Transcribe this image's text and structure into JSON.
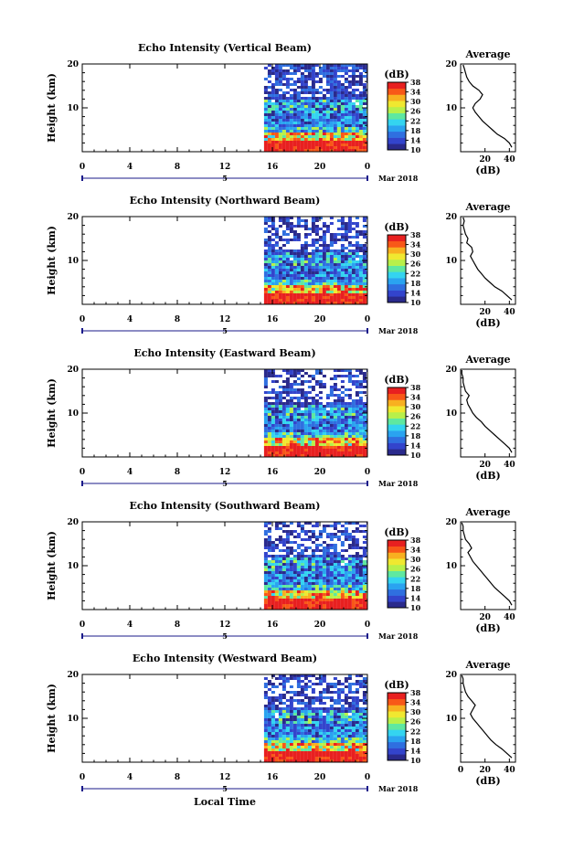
{
  "colors": {
    "scale": [
      "#2a2a8c",
      "#3344cc",
      "#2f6fe0",
      "#2aa3f0",
      "#34d4f0",
      "#5fe8a0",
      "#b8f04a",
      "#f0e830",
      "#f8b020",
      "#f85818",
      "#e82020"
    ],
    "axis": "#000000",
    "timeline": "#1a1a8a"
  },
  "chart_data": [
    {
      "type": "heatmap",
      "title": "Echo Intensity (Vertical Beam)",
      "ylabel": "Height (km)",
      "xticks": [
        "0",
        "4",
        "8",
        "12",
        "16",
        "20",
        "0"
      ],
      "yticks": [
        "10",
        "20"
      ],
      "xlim": [
        0,
        24
      ],
      "ylim": [
        0,
        20
      ],
      "data_start_hour": 15.3,
      "colorbar": {
        "label": "(dB)",
        "ticks": [
          "10",
          "14",
          "18",
          "22",
          "26",
          "30",
          "34",
          "38"
        ],
        "range": [
          10,
          38
        ]
      },
      "date_marker": "5",
      "month_year": "Mar 2018",
      "profile": {
        "title": "Average",
        "xlabel": "(dB)",
        "xticks": [
          "20",
          "40"
        ],
        "xlim": [
          0,
          45
        ],
        "yticks": [
          "10",
          "20"
        ],
        "height_km": [
          1.0,
          2.0,
          3.0,
          4.0,
          5.0,
          6.0,
          7.0,
          8.0,
          9.0,
          10.0,
          11.0,
          12.0,
          13.0,
          14.0,
          15.0,
          16.0,
          17.0,
          18.0,
          19.0,
          19.8
        ],
        "db": [
          42,
          40,
          36,
          30,
          26,
          22,
          18,
          15,
          12,
          10,
          12,
          16,
          18,
          15,
          10,
          7,
          5,
          4,
          3,
          2
        ]
      }
    },
    {
      "type": "heatmap",
      "title": "Echo Intensity (Northward Beam)",
      "ylabel": "Height (km)",
      "xticks": [
        "0",
        "4",
        "8",
        "12",
        "16",
        "20",
        "0"
      ],
      "yticks": [
        "10",
        "20"
      ],
      "xlim": [
        0,
        24
      ],
      "ylim": [
        0,
        20
      ],
      "data_start_hour": 15.3,
      "colorbar": {
        "label": "(dB)",
        "ticks": [
          "10",
          "14",
          "18",
          "22",
          "26",
          "30",
          "34",
          "38"
        ],
        "range": [
          10,
          38
        ]
      },
      "date_marker": "5",
      "month_year": "Mar 2018",
      "profile": {
        "title": "Average",
        "xlabel": "(dB)",
        "xticks": [
          "20",
          "40"
        ],
        "xlim": [
          0,
          45
        ],
        "yticks": [
          "10",
          "20"
        ],
        "height_km": [
          1.0,
          2.0,
          3.0,
          4.0,
          5.0,
          6.0,
          7.0,
          8.0,
          9.0,
          10.0,
          11.0,
          12.0,
          13.0,
          14.0,
          15.0,
          16.0,
          17.0,
          18.0,
          19.0,
          19.8
        ],
        "db": [
          42,
          38,
          34,
          28,
          24,
          20,
          17,
          14,
          12,
          10,
          8,
          10,
          9,
          5,
          6,
          4,
          3,
          2,
          3,
          2
        ]
      }
    },
    {
      "type": "heatmap",
      "title": "Echo Intensity (Eastward Beam)",
      "ylabel": "Height (km)",
      "xticks": [
        "0",
        "4",
        "8",
        "12",
        "16",
        "20",
        "0"
      ],
      "yticks": [
        "10",
        "20"
      ],
      "xlim": [
        0,
        24
      ],
      "ylim": [
        0,
        20
      ],
      "data_start_hour": 15.3,
      "colorbar": {
        "label": "(dB)",
        "ticks": [
          "10",
          "14",
          "18",
          "22",
          "26",
          "30",
          "34",
          "38"
        ],
        "range": [
          10,
          38
        ]
      },
      "date_marker": "5",
      "month_year": "Mar 2018",
      "profile": {
        "title": "Average",
        "xlabel": "(dB)",
        "xticks": [
          "20",
          "40"
        ],
        "xlim": [
          0,
          45
        ],
        "yticks": [
          "10",
          "20"
        ],
        "height_km": [
          1.0,
          2.0,
          3.0,
          4.0,
          5.0,
          6.0,
          7.0,
          8.0,
          9.0,
          10.0,
          11.0,
          12.0,
          13.0,
          14.0,
          15.0,
          16.0,
          17.0,
          18.0,
          19.0,
          19.8
        ],
        "db": [
          42,
          40,
          36,
          32,
          28,
          24,
          20,
          17,
          13,
          10,
          8,
          6,
          5,
          7,
          4,
          3,
          2,
          2,
          1,
          1
        ]
      }
    },
    {
      "type": "heatmap",
      "title": "Echo Intensity (Southward Beam)",
      "ylabel": "Height (km)",
      "xticks": [
        "0",
        "4",
        "8",
        "12",
        "16",
        "20",
        "0"
      ],
      "yticks": [
        "10",
        "20"
      ],
      "xlim": [
        0,
        24
      ],
      "ylim": [
        0,
        20
      ],
      "data_start_hour": 15.3,
      "colorbar": {
        "label": "(dB)",
        "ticks": [
          "10",
          "14",
          "18",
          "22",
          "26",
          "30",
          "34",
          "38"
        ],
        "range": [
          10,
          38
        ]
      },
      "date_marker": "5",
      "month_year": "Mar 2018",
      "profile": {
        "title": "Average",
        "xlabel": "(dB)",
        "xticks": [
          "20",
          "40"
        ],
        "xlim": [
          0,
          45
        ],
        "yticks": [
          "10",
          "20"
        ],
        "height_km": [
          1.0,
          2.0,
          3.0,
          4.0,
          5.0,
          6.0,
          7.0,
          8.0,
          9.0,
          10.0,
          11.0,
          12.0,
          13.0,
          14.0,
          15.0,
          16.0,
          17.0,
          18.0,
          19.0,
          19.8
        ],
        "db": [
          42,
          40,
          36,
          32,
          28,
          25,
          22,
          19,
          16,
          13,
          10,
          8,
          6,
          9,
          7,
          4,
          3,
          2,
          2,
          1
        ]
      }
    },
    {
      "type": "heatmap",
      "title": "Echo Intensity (Westward Beam)",
      "ylabel": "Height (km)",
      "xticks": [
        "0",
        "4",
        "8",
        "12",
        "16",
        "20",
        "0"
      ],
      "yticks": [
        "10",
        "20"
      ],
      "xlim": [
        0,
        24
      ],
      "ylim": [
        0,
        20
      ],
      "data_start_hour": 15.3,
      "colorbar": {
        "label": "(dB)",
        "ticks": [
          "10",
          "14",
          "18",
          "22",
          "26",
          "30",
          "34",
          "38"
        ],
        "range": [
          10,
          38
        ]
      },
      "date_marker": "5",
      "month_year": "Mar 2018",
      "xlabel": "Local Time",
      "profile": {
        "title": "Average",
        "xlabel": "(dB)",
        "xticks": [
          "0",
          "20",
          "40"
        ],
        "xlim": [
          0,
          45
        ],
        "yticks": [
          "10",
          "20"
        ],
        "height_km": [
          1.0,
          2.0,
          3.0,
          4.0,
          5.0,
          6.0,
          7.0,
          8.0,
          9.0,
          10.0,
          11.0,
          12.0,
          13.0,
          14.0,
          15.0,
          16.0,
          17.0,
          18.0,
          19.0,
          19.8
        ],
        "db": [
          42,
          38,
          34,
          29,
          25,
          22,
          19,
          16,
          13,
          10,
          8,
          10,
          12,
          9,
          6,
          4,
          3,
          2,
          2,
          1
        ]
      }
    }
  ]
}
